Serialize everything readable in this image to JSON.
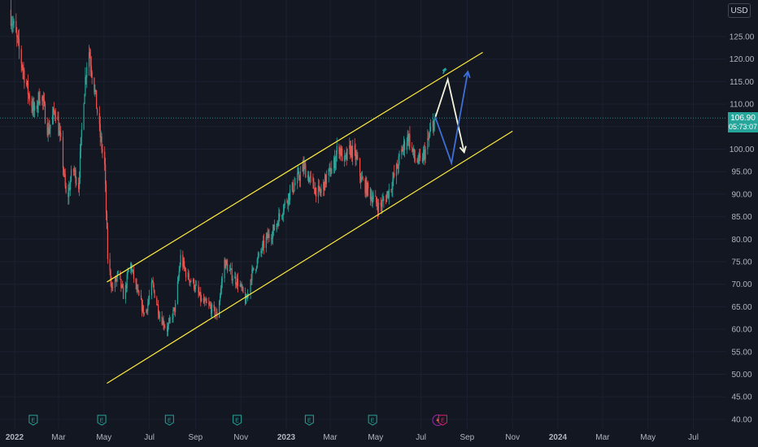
{
  "header": {
    "currency": "USD"
  },
  "price_label": {
    "price": "106.90",
    "countdown": "05:73:07"
  },
  "colors": {
    "background": "#131722",
    "up": "#26a69a",
    "down": "#ef5350",
    "channel": "#ffeb3b",
    "arrow_white": "#f5f5dc",
    "arrow_blue": "#3f6fd6",
    "price_line": "#26a69a",
    "axis_text": "#b2b5be"
  },
  "chart_data": {
    "type": "candlestick",
    "ylim": [
      37,
      136
    ],
    "yticks": [
      40,
      45,
      50,
      55,
      60,
      65,
      70,
      75,
      80,
      85,
      90,
      95,
      100,
      105,
      110,
      115,
      120,
      125
    ],
    "xticks": [
      {
        "label": "2022",
        "date": "2022-01-01",
        "bold": true
      },
      {
        "label": "Mar",
        "date": "2022-03-01"
      },
      {
        "label": "May",
        "date": "2022-05-01"
      },
      {
        "label": "Jul",
        "date": "2022-07-01"
      },
      {
        "label": "Sep",
        "date": "2022-09-01"
      },
      {
        "label": "Nov",
        "date": "2022-11-01"
      },
      {
        "label": "2023",
        "date": "2023-01-01",
        "bold": true
      },
      {
        "label": "Mar",
        "date": "2023-03-01"
      },
      {
        "label": "May",
        "date": "2023-05-01"
      },
      {
        "label": "Jul",
        "date": "2023-07-01"
      },
      {
        "label": "Sep",
        "date": "2023-09-01"
      },
      {
        "label": "Nov",
        "date": "2023-11-01"
      },
      {
        "label": "2024",
        "date": "2024-01-01",
        "bold": true
      },
      {
        "label": "Mar",
        "date": "2024-03-01"
      },
      {
        "label": "May",
        "date": "2024-05-01"
      },
      {
        "label": "Jul",
        "date": "2024-07-01"
      }
    ],
    "last_price": 106.9,
    "price_path": [
      [
        "2021-12-25",
        131
      ],
      [
        "2022-01-03",
        125
      ],
      [
        "2022-01-12",
        118
      ],
      [
        "2022-01-20",
        112
      ],
      [
        "2022-01-28",
        108
      ],
      [
        "2022-02-05",
        113
      ],
      [
        "2022-02-15",
        104
      ],
      [
        "2022-02-25",
        109
      ],
      [
        "2022-03-05",
        100
      ],
      [
        "2022-03-12",
        88
      ],
      [
        "2022-03-20",
        96
      ],
      [
        "2022-03-28",
        92
      ],
      [
        "2022-04-03",
        110
      ],
      [
        "2022-04-10",
        123
      ],
      [
        "2022-04-18",
        114
      ],
      [
        "2022-04-25",
        104
      ],
      [
        "2022-05-02",
        96
      ],
      [
        "2022-05-06",
        76
      ],
      [
        "2022-05-12",
        69
      ],
      [
        "2022-05-20",
        72
      ],
      [
        "2022-05-28",
        67
      ],
      [
        "2022-06-05",
        75
      ],
      [
        "2022-06-15",
        68
      ],
      [
        "2022-06-25",
        63
      ],
      [
        "2022-07-05",
        70
      ],
      [
        "2022-07-15",
        63
      ],
      [
        "2022-07-25",
        60
      ],
      [
        "2022-08-05",
        65
      ],
      [
        "2022-08-12",
        76
      ],
      [
        "2022-08-20",
        72
      ],
      [
        "2022-08-30",
        70
      ],
      [
        "2022-09-10",
        66
      ],
      [
        "2022-09-20",
        65
      ],
      [
        "2022-09-30",
        63
      ],
      [
        "2022-10-10",
        75
      ],
      [
        "2022-10-20",
        72
      ],
      [
        "2022-10-30",
        70
      ],
      [
        "2022-11-08",
        66
      ],
      [
        "2022-11-15",
        72
      ],
      [
        "2022-11-25",
        76
      ],
      [
        "2022-12-05",
        80
      ],
      [
        "2022-12-15",
        82
      ],
      [
        "2022-12-25",
        86
      ],
      [
        "2023-01-05",
        90
      ],
      [
        "2023-01-15",
        93
      ],
      [
        "2023-01-25",
        96
      ],
      [
        "2023-02-05",
        92
      ],
      [
        "2023-02-15",
        90
      ],
      [
        "2023-02-25",
        94
      ],
      [
        "2023-03-05",
        96
      ],
      [
        "2023-03-12",
        101
      ],
      [
        "2023-03-20",
        97
      ],
      [
        "2023-03-28",
        100
      ],
      [
        "2023-04-05",
        98
      ],
      [
        "2023-04-12",
        93
      ],
      [
        "2023-04-20",
        91
      ],
      [
        "2023-04-28",
        89
      ],
      [
        "2023-05-06",
        87
      ],
      [
        "2023-05-14",
        89
      ],
      [
        "2023-05-22",
        92
      ],
      [
        "2023-05-30",
        96
      ],
      [
        "2023-06-06",
        100
      ],
      [
        "2023-06-14",
        103
      ],
      [
        "2023-06-22",
        98
      ],
      [
        "2023-06-30",
        97
      ],
      [
        "2023-07-08",
        100
      ],
      [
        "2023-07-14",
        104
      ],
      [
        "2023-07-20",
        106.9
      ]
    ],
    "channel": {
      "upper": [
        [
          "2022-05-05",
          70.5
        ],
        [
          "2023-09-22",
          121.5
        ]
      ],
      "lower": [
        [
          "2022-05-05",
          48
        ],
        [
          "2023-11-01",
          104
        ]
      ]
    },
    "arrows": [
      {
        "color": "white",
        "points": [
          [
            "2023-07-20",
            106.9
          ],
          [
            "2023-08-06",
            115.5
          ],
          [
            "2023-08-28",
            99.3
          ]
        ]
      },
      {
        "color": "blue",
        "points": [
          [
            "2023-07-20",
            107.2
          ],
          [
            "2023-08-11",
            96.9
          ],
          [
            "2023-09-02",
            117.2
          ]
        ]
      }
    ],
    "earnings_markers": [
      {
        "date": "2022-01-26",
        "label": "E"
      },
      {
        "date": "2022-04-28",
        "label": "E"
      },
      {
        "date": "2022-07-28",
        "label": "E"
      },
      {
        "date": "2022-10-27",
        "label": "E"
      },
      {
        "date": "2023-02-01",
        "label": "E"
      },
      {
        "date": "2023-04-27",
        "label": "E"
      },
      {
        "date": "2023-07-27",
        "label": "E"
      }
    ]
  }
}
